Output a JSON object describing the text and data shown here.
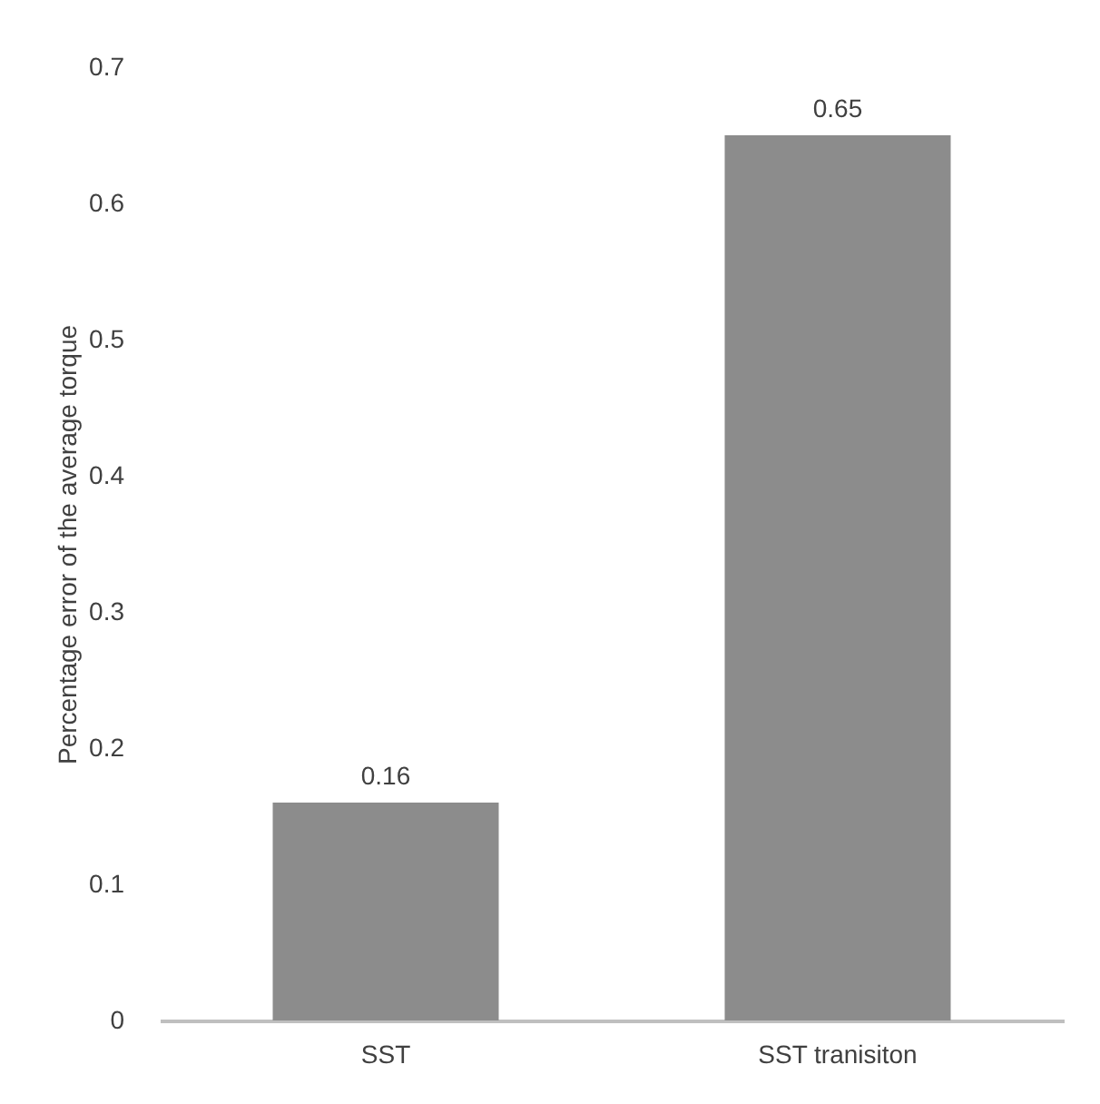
{
  "chart_data": {
    "type": "bar",
    "ylabel": "Percentage error of the average torque",
    "categories": [
      "SST",
      "SST tranisiton"
    ],
    "values": [
      0.16,
      0.65
    ],
    "color": "#8c8c8c",
    "ylim": [
      0,
      0.7
    ],
    "yticks": [
      0,
      0.1,
      0.2,
      0.3,
      0.4,
      0.5,
      0.6,
      0.7
    ],
    "grid": false,
    "data_labels": true
  }
}
